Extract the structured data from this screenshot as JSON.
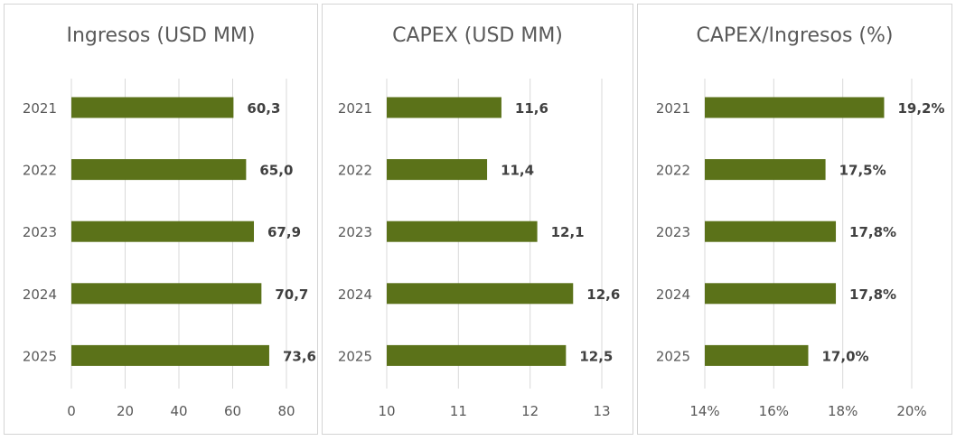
{
  "chart_data": [
    {
      "type": "bar",
      "orientation": "horizontal",
      "title": "Ingresos (USD MM)",
      "categories": [
        "2021",
        "2022",
        "2023",
        "2024",
        "2025"
      ],
      "values": [
        60.3,
        65.0,
        67.9,
        70.7,
        73.6
      ],
      "data_labels": [
        "60,3",
        "65,0",
        "67,9",
        "70,7",
        "73,6"
      ],
      "xlim": [
        0,
        80
      ],
      "ticks": [
        0,
        20,
        40,
        60,
        80
      ],
      "tick_labels": [
        "0",
        "20",
        "40",
        "60",
        "80"
      ],
      "grid": true,
      "color": "#5b7219"
    },
    {
      "type": "bar",
      "orientation": "horizontal",
      "title": "CAPEX (USD MM)",
      "categories": [
        "2021",
        "2022",
        "2023",
        "2024",
        "2025"
      ],
      "values": [
        11.6,
        11.4,
        12.1,
        12.6,
        12.5
      ],
      "data_labels": [
        "11,6",
        "11,4",
        "12,1",
        "12,6",
        "12,5"
      ],
      "xlim": [
        10,
        13
      ],
      "ticks": [
        10,
        11,
        12,
        13
      ],
      "tick_labels": [
        "10",
        "11",
        "12",
        "13"
      ],
      "grid": true,
      "color": "#5b7219"
    },
    {
      "type": "bar",
      "orientation": "horizontal",
      "title": "CAPEX/Ingresos (%)",
      "categories": [
        "2021",
        "2022",
        "2023",
        "2024",
        "2025"
      ],
      "values": [
        19.2,
        17.5,
        17.8,
        17.8,
        17.0
      ],
      "data_labels": [
        "19,2%",
        "17,5%",
        "17,8%",
        "17,8%",
        "17,0%"
      ],
      "xlim": [
        14,
        20
      ],
      "ticks": [
        14,
        16,
        18,
        20
      ],
      "tick_labels": [
        "14%",
        "16%",
        "18%",
        "20%"
      ],
      "grid": true,
      "color": "#5b7219"
    }
  ]
}
